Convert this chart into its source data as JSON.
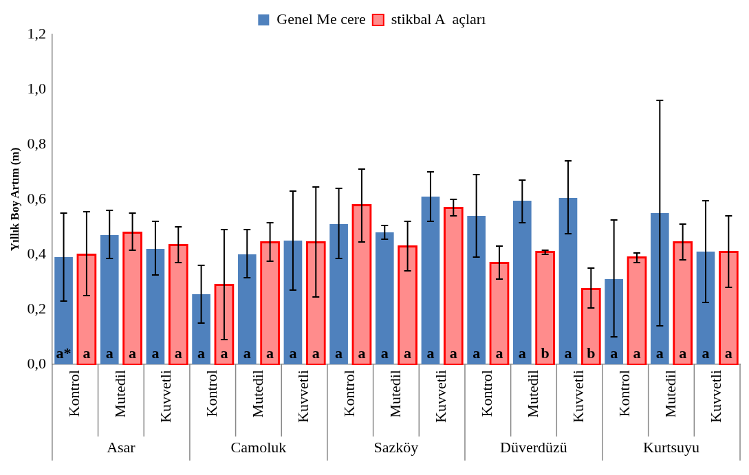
{
  "chart_data": {
    "type": "bar",
    "ylabel": "Yıllık Boy Artım (m)",
    "categories": [
      "Kontrol",
      "Mutedil",
      "Kuvvetli",
      "Kontrol",
      "Mutedil",
      "Kuvvetli",
      "Kontrol",
      "Mutedil",
      "Kuvvetli",
      "Kontrol",
      "Mutedil",
      "Kuvvetli",
      "Kontrol",
      "Mutedil",
      "Kuvvetli"
    ],
    "annotations": [
      "Asar",
      "Camoluk",
      "Sazköy",
      "Düverdüzü",
      "Kurtsuyu"
    ],
    "series": [
      {
        "name": "Genel Me cere",
        "color": "#4f81bd",
        "values": [
          0.39,
          0.47,
          0.42,
          0.255,
          0.4,
          0.45,
          0.51,
          0.48,
          0.61,
          0.54,
          0.595,
          0.605,
          0.31,
          0.55,
          0.41
        ],
        "errors": [
          [
            0.23,
            0.55
          ],
          [
            0.385,
            0.56
          ],
          [
            0.325,
            0.52
          ],
          [
            0.15,
            0.36
          ],
          [
            0.315,
            0.49
          ],
          [
            0.27,
            0.63
          ],
          [
            0.385,
            0.64
          ],
          [
            0.455,
            0.505
          ],
          [
            0.52,
            0.7
          ],
          [
            0.39,
            0.69
          ],
          [
            0.515,
            0.67
          ],
          [
            0.475,
            0.74
          ],
          [
            0.1,
            0.525
          ],
          [
            0.14,
            0.96
          ],
          [
            0.225,
            0.595
          ]
        ],
        "value_labels": [
          "a*",
          "a",
          "a",
          "a",
          "a",
          "a",
          "a",
          "a",
          "a",
          "a",
          "a",
          "a",
          "a",
          "a",
          "a"
        ]
      },
      {
        "name": "stikbal A  açları",
        "color": "#ff0000",
        "values": [
          0.4,
          0.48,
          0.435,
          0.29,
          0.445,
          0.445,
          0.58,
          0.43,
          0.57,
          0.37,
          0.41,
          0.275,
          0.39,
          0.445,
          0.41
        ],
        "errors": [
          [
            0.25,
            0.555
          ],
          [
            0.415,
            0.55
          ],
          [
            0.37,
            0.5
          ],
          [
            0.09,
            0.49
          ],
          [
            0.375,
            0.515
          ],
          [
            0.245,
            0.645
          ],
          [
            0.445,
            0.71
          ],
          [
            0.34,
            0.52
          ],
          [
            0.54,
            0.6
          ],
          [
            0.31,
            0.43
          ],
          [
            0.4,
            0.415
          ],
          [
            0.205,
            0.35
          ],
          [
            0.37,
            0.405
          ],
          [
            0.38,
            0.51
          ],
          [
            0.28,
            0.54
          ]
        ],
        "value_labels": [
          "a",
          "a",
          "a",
          "a",
          "a",
          "a",
          "a",
          "a",
          "a",
          "a",
          "b",
          "b",
          "a",
          "a",
          "a"
        ]
      }
    ],
    "ylim": [
      0,
      1.2
    ],
    "yticks": [
      {
        "value": 0,
        "label": "0,0"
      },
      {
        "value": 0.2,
        "label": "0,2"
      },
      {
        "value": 0.4,
        "label": "0,4"
      },
      {
        "value": 0.6,
        "label": "0,6"
      },
      {
        "value": 0.8,
        "label": "0,8"
      },
      {
        "value": 1.0,
        "label": "1,0"
      },
      {
        "value": 1.2,
        "label": "1,2"
      }
    ],
    "legend": "top",
    "grid": false
  }
}
